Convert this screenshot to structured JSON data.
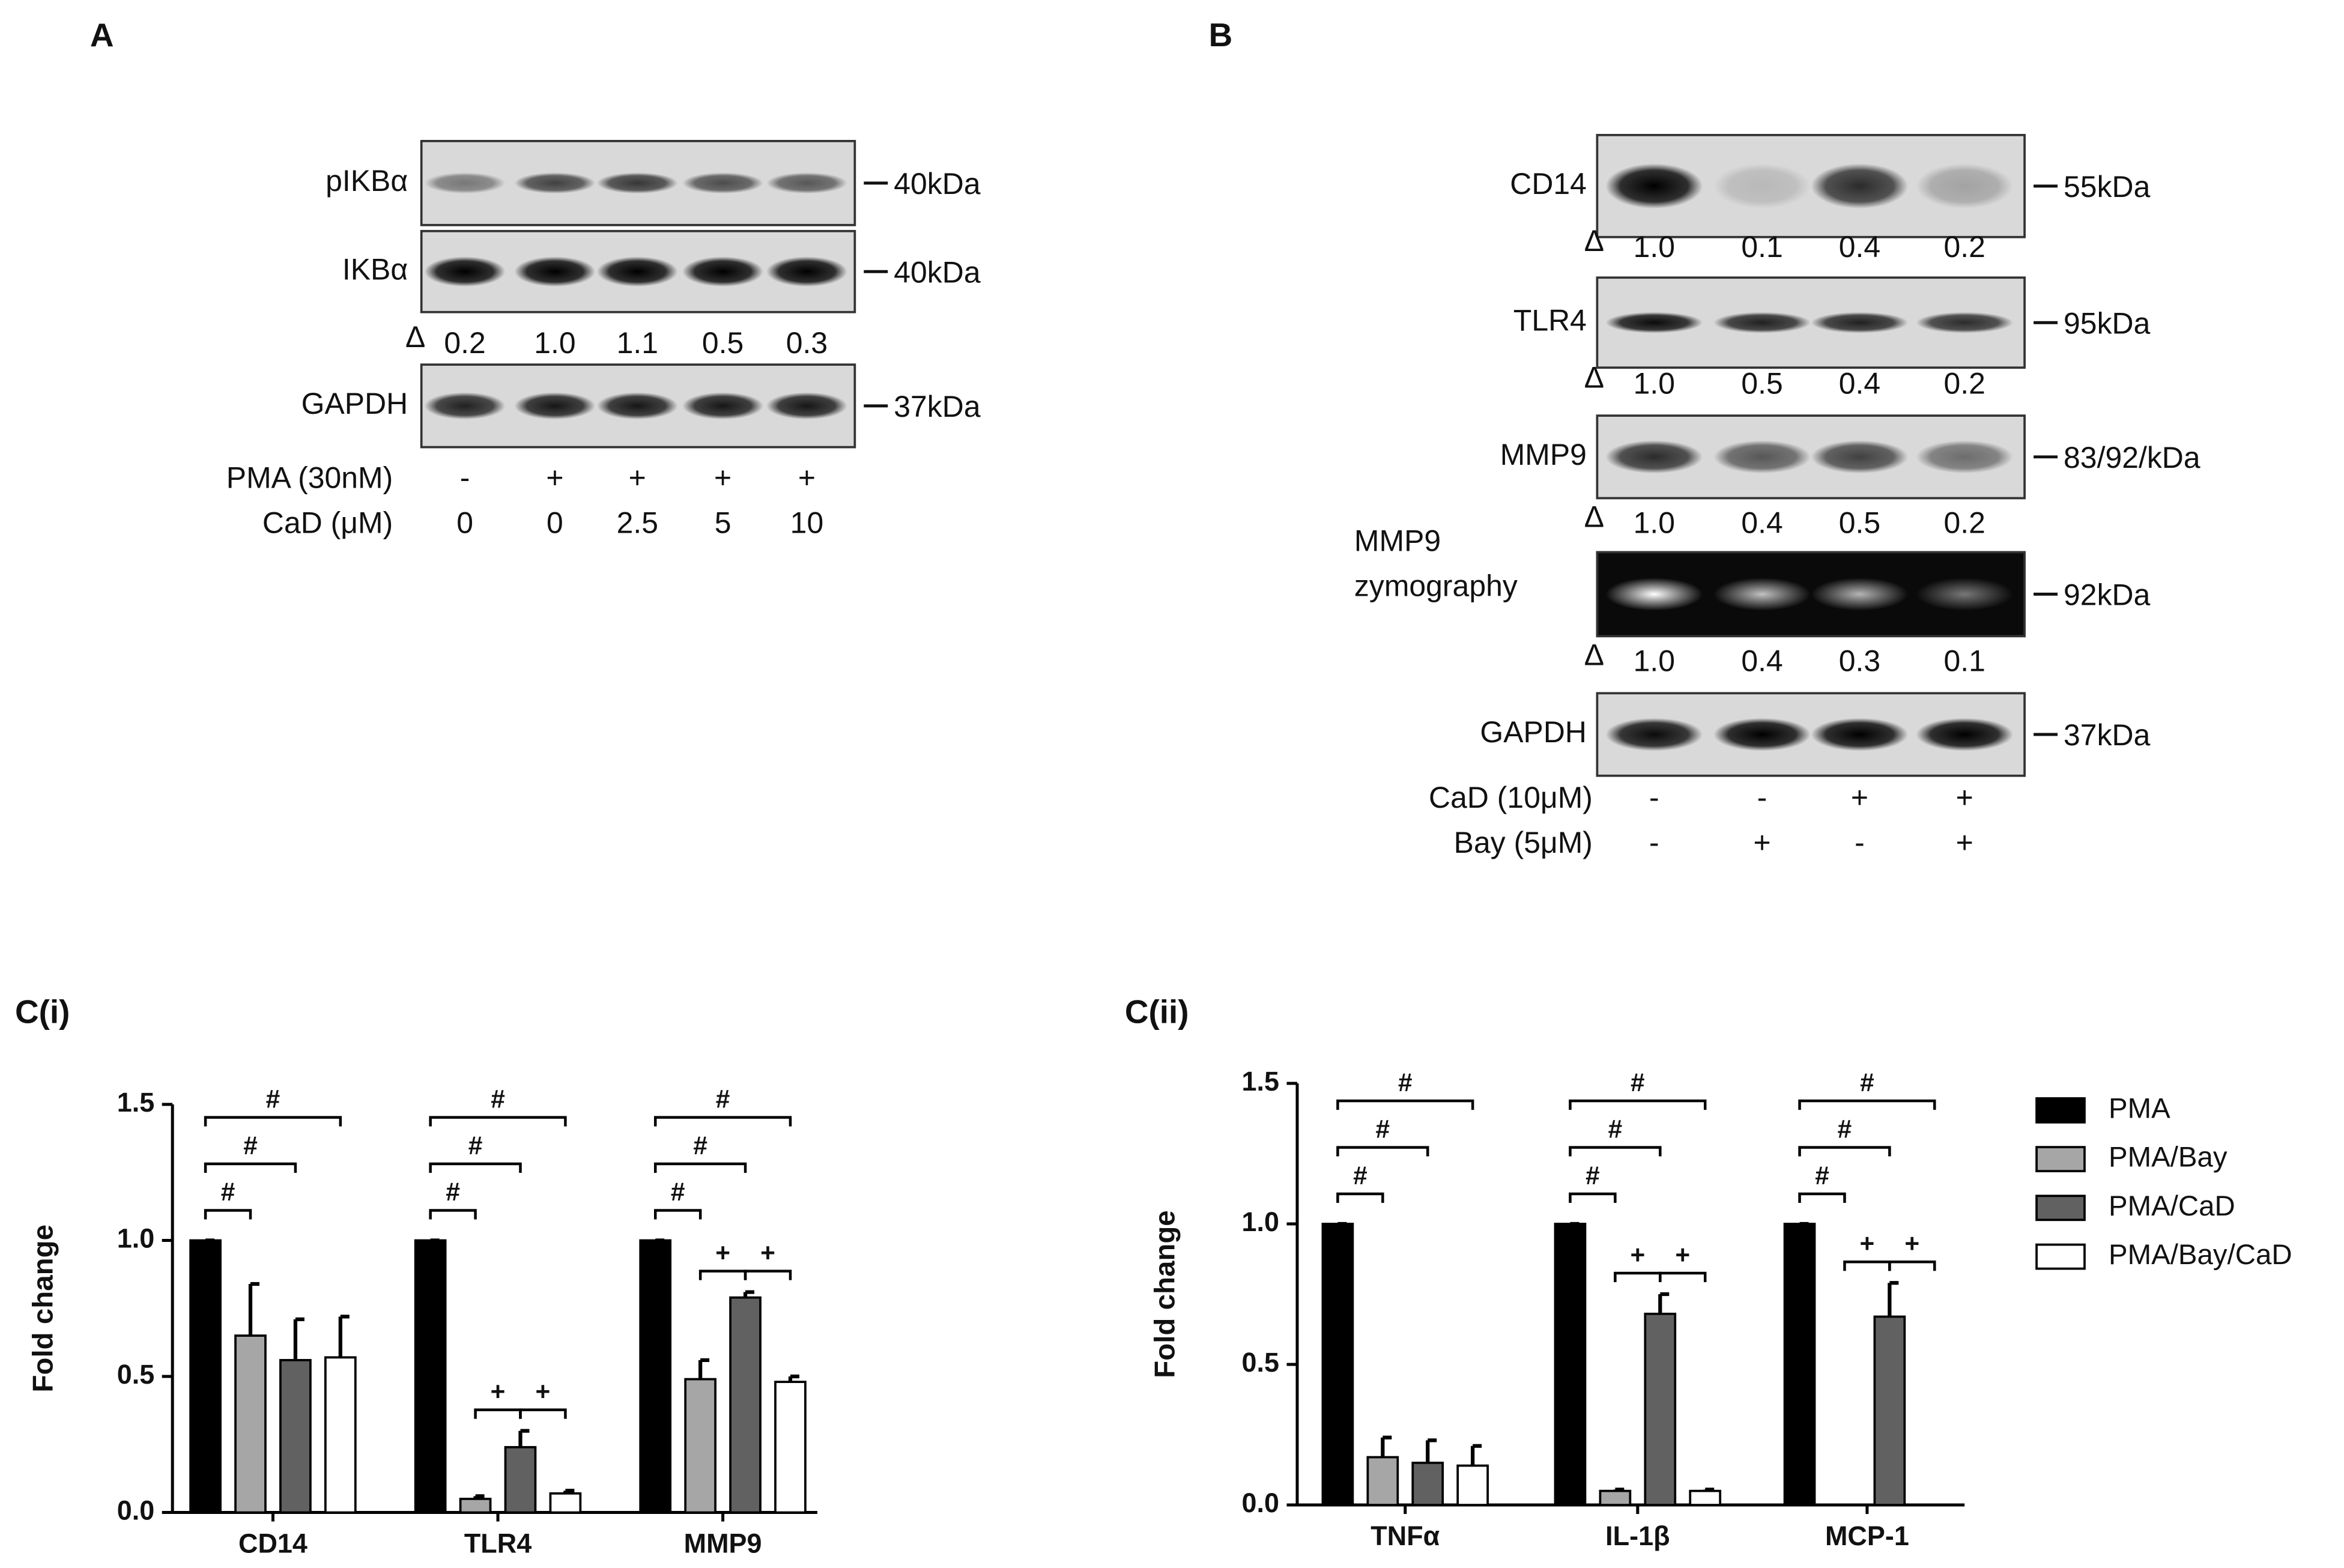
{
  "panel_a": {
    "label": "A",
    "delta_symbol": "Δ",
    "blots": [
      {
        "name_lines": [
          "pIKBα"
        ],
        "size": "40kDa"
      },
      {
        "name_lines": [
          "IKBα"
        ],
        "size": "40kDa",
        "delta": [
          "0.2",
          "1.0",
          "1.1",
          "0.5",
          "0.3"
        ]
      },
      {
        "name_lines": [
          "GAPDH"
        ],
        "size": "37kDa"
      }
    ],
    "conditions": [
      {
        "name": "PMA (30nM)",
        "values": [
          "-",
          "+",
          "+",
          "+",
          "+"
        ]
      },
      {
        "name": "CaD (μM)",
        "values": [
          "0",
          "0",
          "2.5",
          "5",
          "10"
        ]
      }
    ]
  },
  "panel_b": {
    "label": "B",
    "delta_symbol": "Δ",
    "blots": [
      {
        "name_lines": [
          "CD14"
        ],
        "size": "55kDa",
        "delta": [
          "1.0",
          "0.1",
          "0.4",
          "0.2"
        ]
      },
      {
        "name_lines": [
          "TLR4"
        ],
        "size": "95kDa",
        "delta": [
          "1.0",
          "0.5",
          "0.4",
          "0.2"
        ]
      },
      {
        "name_lines": [
          "MMP9"
        ],
        "size": "83/92/kDa",
        "delta": [
          "1.0",
          "0.4",
          "0.5",
          "0.2"
        ]
      },
      {
        "name_lines": [
          "MMP9",
          "zymography"
        ],
        "size": "92kDa",
        "delta": [
          "1.0",
          "0.4",
          "0.3",
          "0.1"
        ]
      },
      {
        "name_lines": [
          "GAPDH"
        ],
        "size": "37kDa"
      }
    ],
    "conditions": [
      {
        "name": "CaD (10μM)",
        "values": [
          "-",
          "-",
          "+",
          "+"
        ]
      },
      {
        "name": "Bay (5μM)",
        "values": [
          "-",
          "+",
          "-",
          "+"
        ]
      }
    ]
  },
  "chart_data": [
    {
      "type": "bar",
      "title": "C(i)",
      "y_label": "Fold change",
      "categories": [
        "CD14",
        "TLR4",
        "MMP9"
      ],
      "series": [
        {
          "color": "#000000",
          "values": [
            1.0,
            1.0,
            1.0
          ],
          "errors": [
            0,
            0,
            0
          ]
        },
        {
          "color": "#a6a6a6",
          "values": [
            0.65,
            0.05,
            0.49
          ],
          "errors": [
            0.19,
            0.01,
            0.07
          ]
        },
        {
          "color": "#616161",
          "values": [
            0.56,
            0.24,
            0.79
          ],
          "errors": [
            0.15,
            0.06,
            0.02
          ]
        },
        {
          "color": "#ffffff",
          "values": [
            0.57,
            0.07,
            0.48
          ],
          "errors": [
            0.15,
            0.01,
            0.02
          ]
        }
      ],
      "ylim": [
        0,
        1.5
      ],
      "yticks": [
        {
          "value": 0,
          "label": "0.0"
        },
        {
          "value": 0.5,
          "label": "0.5"
        },
        {
          "value": 1,
          "label": "1.0"
        },
        {
          "value": 1.5,
          "label": "1.5"
        }
      ],
      "annotations": [
        {
          "category": 0,
          "pair": [
            0,
            1
          ],
          "label": "#"
        },
        {
          "category": 0,
          "pair": [
            0,
            2
          ],
          "label": "#"
        },
        {
          "category": 0,
          "pair": [
            0,
            3
          ],
          "label": "#"
        },
        {
          "category": 1,
          "pair": [
            0,
            1
          ],
          "label": "#"
        },
        {
          "category": 1,
          "pair": [
            0,
            2
          ],
          "label": "#"
        },
        {
          "category": 1,
          "pair": [
            0,
            3
          ],
          "label": "#"
        },
        {
          "category": 1,
          "pair": [
            1,
            2
          ],
          "label": "+"
        },
        {
          "category": 1,
          "pair": [
            2,
            3
          ],
          "label": "+"
        },
        {
          "category": 2,
          "pair": [
            0,
            1
          ],
          "label": "#"
        },
        {
          "category": 2,
          "pair": [
            0,
            2
          ],
          "label": "#"
        },
        {
          "category": 2,
          "pair": [
            0,
            3
          ],
          "label": "#"
        },
        {
          "category": 2,
          "pair": [
            1,
            2
          ],
          "label": "+"
        },
        {
          "category": 2,
          "pair": [
            2,
            3
          ],
          "label": "+"
        }
      ]
    },
    {
      "type": "bar",
      "title": "C(ii)",
      "y_label": "Fold change",
      "categories": [
        "TNFα",
        "IL-1β",
        "MCP-1"
      ],
      "series": [
        {
          "name": "PMA",
          "color": "#000000",
          "values": [
            1.0,
            1.0,
            1.0
          ],
          "errors": [
            0,
            0,
            0
          ]
        },
        {
          "name": "PMA/Bay",
          "color": "#a6a6a6",
          "values": [
            0.17,
            0.05,
            null
          ],
          "errors": [
            0.07,
            0.005,
            null
          ]
        },
        {
          "name": "PMA/CaD",
          "color": "#616161",
          "values": [
            0.15,
            0.68,
            0.67
          ],
          "errors": [
            0.08,
            0.07,
            0.12
          ]
        },
        {
          "name": "PMA/Bay/CaD",
          "color": "#ffffff",
          "values": [
            0.14,
            0.05,
            null
          ],
          "errors": [
            0.07,
            0.005,
            null
          ]
        }
      ],
      "ylim": [
        0,
        1.5
      ],
      "yticks": [
        {
          "value": 0,
          "label": "0.0"
        },
        {
          "value": 0.5,
          "label": "0.5"
        },
        {
          "value": 1,
          "label": "1.0"
        },
        {
          "value": 1.5,
          "label": "1.5"
        }
      ],
      "legend": "right",
      "annotations": [
        {
          "category": 0,
          "pair": [
            0,
            1
          ],
          "label": "#"
        },
        {
          "category": 0,
          "pair": [
            0,
            2
          ],
          "label": "#"
        },
        {
          "category": 0,
          "pair": [
            0,
            3
          ],
          "label": "#"
        },
        {
          "category": 1,
          "pair": [
            0,
            1
          ],
          "label": "#"
        },
        {
          "category": 1,
          "pair": [
            0,
            2
          ],
          "label": "#"
        },
        {
          "category": 1,
          "pair": [
            0,
            3
          ],
          "label": "#"
        },
        {
          "category": 1,
          "pair": [
            1,
            2
          ],
          "label": "+"
        },
        {
          "category": 1,
          "pair": [
            2,
            3
          ],
          "label": "+"
        },
        {
          "category": 2,
          "pair": [
            0,
            1
          ],
          "label": "#"
        },
        {
          "category": 2,
          "pair": [
            0,
            2
          ],
          "label": "#"
        },
        {
          "category": 2,
          "pair": [
            0,
            3
          ],
          "label": "#"
        },
        {
          "category": 2,
          "pair": [
            1,
            2
          ],
          "label": "+"
        },
        {
          "category": 2,
          "pair": [
            2,
            3
          ],
          "label": "+"
        }
      ]
    }
  ]
}
